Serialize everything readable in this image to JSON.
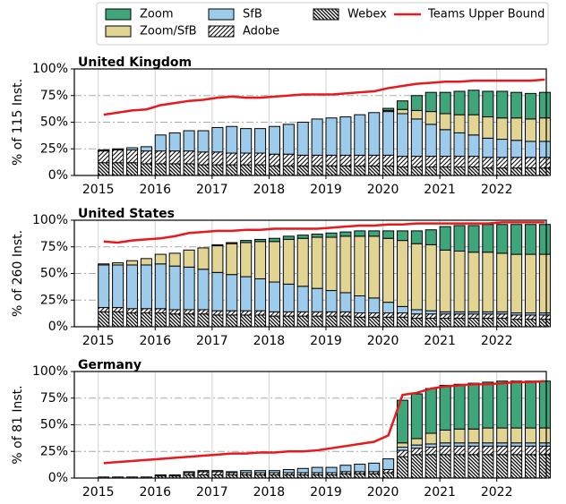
{
  "chart_data": [
    {
      "type": "bar",
      "title": "United Kingdom",
      "ylabel": "% of 115 Inst.",
      "legend": "top",
      "x": [
        2015,
        2015.25,
        2015.5,
        2015.75,
        2016,
        2016.25,
        2016.5,
        2016.75,
        2017,
        2017.25,
        2017.5,
        2017.75,
        2018,
        2018.25,
        2018.5,
        2018.75,
        2019,
        2019.25,
        2019.5,
        2019.75,
        2020,
        2020.25,
        2020.5,
        2020.75,
        2021,
        2021.25,
        2021.5,
        2021.75,
        2022,
        2022.25,
        2022.5,
        2022.75
      ],
      "xlim": [
        2014.58,
        2022.87
      ],
      "xticks": [
        2015,
        2016,
        2017,
        2018,
        2019,
        2020,
        2021,
        2022
      ],
      "ylim": [
        0,
        100
      ],
      "yticks": [
        {
          "value": 0,
          "label": "0%"
        },
        {
          "value": 25,
          "label": "25%"
        },
        {
          "value": 50,
          "label": "50%"
        },
        {
          "value": 75,
          "label": "75%"
        },
        {
          "value": 100,
          "label": "100%"
        }
      ],
      "grid": true,
      "series": [
        {
          "name": "Webex",
          "type": "bar",
          "color": "#ffffff",
          "hatch": "\\\\",
          "values": [
            12,
            12,
            12,
            11,
            11,
            11,
            11,
            10,
            10,
            10,
            10,
            10,
            9,
            9,
            9,
            9,
            9,
            9,
            9,
            9,
            9,
            8,
            8,
            8,
            8,
            8,
            8,
            7,
            7,
            7,
            7,
            7
          ]
        },
        {
          "name": "Adobe",
          "type": "bar",
          "color": "#ffffff",
          "hatch": "//",
          "values": [
            11,
            12,
            12,
            12,
            12,
            12,
            12,
            12,
            12,
            11,
            11,
            11,
            11,
            11,
            10,
            10,
            10,
            10,
            10,
            10,
            10,
            10,
            10,
            10,
            10,
            10,
            10,
            10,
            10,
            10,
            10,
            10
          ]
        },
        {
          "name": "SfB",
          "type": "bar",
          "color": "#9ccbec",
          "values": [
            1,
            1,
            2,
            4,
            15,
            17,
            19,
            20,
            23,
            25,
            23,
            23,
            26,
            28,
            31,
            34,
            35,
            36,
            38,
            40,
            41,
            40,
            35,
            30,
            25,
            22,
            20,
            18,
            17,
            16,
            15,
            15
          ]
        },
        {
          "name": "Zoom/SfB",
          "type": "bar",
          "color": "#e2d594",
          "values": [
            0,
            0,
            0,
            0,
            0,
            0,
            0,
            0,
            0,
            0,
            0,
            0,
            0,
            0,
            0,
            0,
            0,
            0,
            0,
            0,
            1,
            4,
            8,
            12,
            15,
            17,
            19,
            20,
            20,
            21,
            21,
            22
          ]
        },
        {
          "name": "Zoom",
          "type": "bar",
          "color": "#3fa67c",
          "values": [
            0,
            0,
            0,
            0,
            0,
            0,
            0,
            0,
            0,
            0,
            0,
            0,
            0,
            0,
            0,
            0,
            0,
            0,
            0,
            0,
            2,
            8,
            14,
            18,
            20,
            22,
            23,
            24,
            25,
            24,
            24,
            24
          ]
        },
        {
          "name": "Teams Upper Bound",
          "type": "line",
          "color": "#e8191c",
          "values": [
            57,
            59,
            61,
            62,
            66,
            68,
            70,
            71,
            73,
            74,
            73,
            73,
            74,
            75,
            76,
            76,
            76,
            77,
            78,
            79,
            82,
            84,
            86,
            87,
            88,
            88,
            89,
            89,
            89,
            89,
            89,
            90
          ]
        }
      ]
    },
    {
      "type": "bar",
      "title": "United States",
      "ylabel": "% of 260 Inst.",
      "x": [
        2015,
        2015.25,
        2015.5,
        2015.75,
        2016,
        2016.25,
        2016.5,
        2016.75,
        2017,
        2017.25,
        2017.5,
        2017.75,
        2018,
        2018.25,
        2018.5,
        2018.75,
        2019,
        2019.25,
        2019.5,
        2019.75,
        2020,
        2020.25,
        2020.5,
        2020.75,
        2021,
        2021.25,
        2021.5,
        2021.75,
        2022,
        2022.25,
        2022.5,
        2022.75
      ],
      "xlim": [
        2014.58,
        2022.87
      ],
      "xticks": [
        2015,
        2016,
        2017,
        2018,
        2019,
        2020,
        2021,
        2022
      ],
      "ylim": [
        0,
        100
      ],
      "yticks": [
        {
          "value": 0,
          "label": "0%"
        },
        {
          "value": 25,
          "label": "25%"
        },
        {
          "value": 50,
          "label": "50%"
        },
        {
          "value": 75,
          "label": "75%"
        },
        {
          "value": 100,
          "label": "100%"
        }
      ],
      "grid": true,
      "series": [
        {
          "type": "bar",
          "color": "#ffffff",
          "hatch": "\\\\",
          "values": [
            14,
            14,
            13,
            13,
            13,
            12,
            12,
            12,
            11,
            11,
            11,
            11,
            10,
            10,
            10,
            10,
            10,
            10,
            9,
            9,
            9,
            9,
            8,
            8,
            8,
            8,
            8,
            8,
            8,
            7,
            7,
            7
          ]
        },
        {
          "type": "bar",
          "color": "#ffffff",
          "hatch": "//",
          "values": [
            4,
            4,
            4,
            4,
            4,
            4,
            4,
            4,
            4,
            4,
            4,
            4,
            4,
            4,
            4,
            4,
            4,
            4,
            4,
            4,
            4,
            4,
            4,
            4,
            4,
            4,
            4,
            4,
            4,
            4,
            4,
            4
          ]
        },
        {
          "type": "bar",
          "color": "#9ccbec",
          "values": [
            40,
            40,
            41,
            41,
            42,
            41,
            40,
            38,
            36,
            34,
            32,
            30,
            28,
            26,
            24,
            22,
            20,
            18,
            16,
            14,
            10,
            6,
            4,
            3,
            2,
            2,
            2,
            2,
            2,
            2,
            2,
            2
          ]
        },
        {
          "type": "bar",
          "color": "#e2d594",
          "values": [
            1,
            2,
            4,
            6,
            9,
            12,
            16,
            20,
            25,
            29,
            32,
            35,
            38,
            42,
            45,
            48,
            50,
            53,
            56,
            58,
            60,
            62,
            62,
            62,
            58,
            57,
            56,
            56,
            55,
            55,
            55,
            55
          ]
        },
        {
          "type": "bar",
          "color": "#3fa67c",
          "values": [
            0,
            0,
            0,
            0,
            0,
            0,
            0,
            0,
            1,
            1,
            2,
            2,
            3,
            3,
            3,
            3,
            4,
            4,
            5,
            5,
            7,
            9,
            12,
            14,
            22,
            24,
            25,
            26,
            27,
            28,
            28,
            28
          ]
        },
        {
          "type": "line",
          "color": "#e8191c",
          "values": [
            80,
            79,
            81,
            82,
            83,
            85,
            88,
            89,
            90,
            90,
            91,
            91,
            92,
            92,
            92,
            92,
            93,
            94,
            95,
            95,
            96,
            96,
            97,
            97,
            97,
            97,
            97,
            97,
            98,
            98,
            98,
            98
          ]
        }
      ]
    },
    {
      "type": "bar",
      "title": "Germany",
      "ylabel": "% of 81 Inst.",
      "x": [
        2015,
        2015.25,
        2015.5,
        2015.75,
        2016,
        2016.25,
        2016.5,
        2016.75,
        2017,
        2017.25,
        2017.5,
        2017.75,
        2018,
        2018.25,
        2018.5,
        2018.75,
        2019,
        2019.25,
        2019.5,
        2019.75,
        2020,
        2020.25,
        2020.5,
        2020.75,
        2021,
        2021.25,
        2021.5,
        2021.75,
        2022,
        2022.25,
        2022.5,
        2022.75
      ],
      "xlim": [
        2014.58,
        2022.87
      ],
      "xticks": [
        2015,
        2016,
        2017,
        2018,
        2019,
        2020,
        2021,
        2022
      ],
      "ylim": [
        0,
        100
      ],
      "yticks": [
        {
          "value": 0,
          "label": "0%"
        },
        {
          "value": 25,
          "label": "25%"
        },
        {
          "value": 50,
          "label": "50%"
        },
        {
          "value": 75,
          "label": "75%"
        },
        {
          "value": 100,
          "label": "100%"
        }
      ],
      "grid": true,
      "series": [
        {
          "type": "bar",
          "color": "#ffffff",
          "hatch": "\\\\",
          "values": [
            1,
            1,
            1,
            1,
            2,
            2,
            3,
            3,
            3,
            3,
            3,
            3,
            3,
            3,
            3,
            3,
            3,
            4,
            4,
            4,
            5,
            20,
            22,
            22,
            22,
            22,
            22,
            22,
            22,
            22,
            22,
            22
          ]
        },
        {
          "type": "bar",
          "color": "#ffffff",
          "hatch": "//",
          "values": [
            0,
            0,
            0,
            0,
            1,
            1,
            2,
            3,
            3,
            2,
            2,
            2,
            2,
            2,
            2,
            2,
            2,
            2,
            2,
            2,
            3,
            6,
            6,
            7,
            8,
            8,
            8,
            8,
            8,
            8,
            8,
            8
          ]
        },
        {
          "type": "bar",
          "color": "#9ccbec",
          "values": [
            0,
            0,
            0,
            0,
            0,
            0,
            1,
            1,
            1,
            1,
            2,
            2,
            2,
            3,
            4,
            5,
            5,
            6,
            7,
            8,
            10,
            3,
            3,
            3,
            3,
            3,
            3,
            3,
            3,
            3,
            3,
            3
          ]
        },
        {
          "type": "bar",
          "color": "#e2d594",
          "values": [
            0,
            0,
            0,
            0,
            0,
            0,
            0,
            0,
            0,
            0,
            0,
            0,
            0,
            0,
            0,
            0,
            0,
            0,
            0,
            0,
            0,
            4,
            6,
            10,
            12,
            13,
            13,
            14,
            14,
            14,
            14,
            14
          ]
        },
        {
          "type": "bar",
          "color": "#3fa67c",
          "values": [
            0,
            0,
            0,
            0,
            0,
            0,
            0,
            0,
            0,
            0,
            0,
            0,
            0,
            0,
            0,
            0,
            0,
            0,
            0,
            0,
            0,
            40,
            42,
            42,
            42,
            42,
            43,
            43,
            44,
            44,
            44,
            44
          ]
        },
        {
          "type": "line",
          "color": "#e8191c",
          "values": [
            14,
            15,
            16,
            17,
            18,
            19,
            20,
            21,
            22,
            23,
            23,
            24,
            24,
            25,
            25,
            26,
            28,
            30,
            32,
            34,
            40,
            78,
            80,
            84,
            86,
            87,
            88,
            88,
            89,
            90,
            90,
            91
          ]
        }
      ]
    }
  ]
}
